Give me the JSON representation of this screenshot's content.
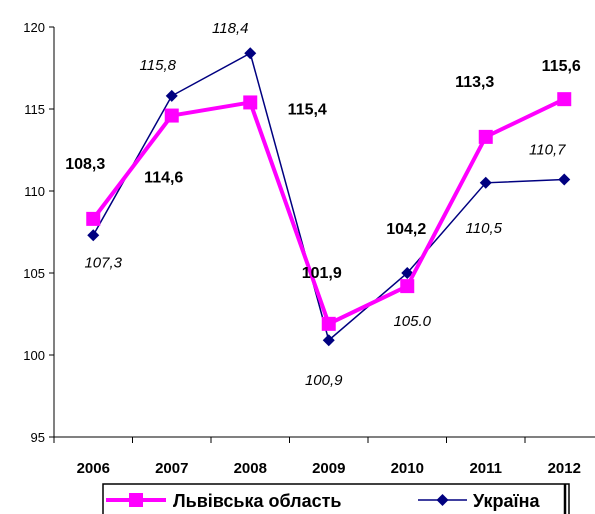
{
  "chart_data": {
    "type": "line",
    "categories": [
      "2006",
      "2007",
      "2008",
      "2009",
      "2010",
      "2011",
      "2012"
    ],
    "ylim": [
      95,
      120
    ],
    "yticks": [
      95,
      100,
      105,
      110,
      115,
      120
    ],
    "grid": false,
    "legend_position": "bottom",
    "series": [
      {
        "name": "Львівська область",
        "color": "#ff00ff",
        "marker": "square",
        "values": [
          108.3,
          114.6,
          115.4,
          101.9,
          104.2,
          113.3,
          115.6
        ],
        "labels": [
          "108,3",
          "114,6",
          "115,4",
          "101,9",
          "104,2",
          "113,3",
          "115,6"
        ]
      },
      {
        "name": "Україна",
        "color": "#000080",
        "marker": "diamond",
        "values": [
          107.3,
          115.8,
          118.4,
          100.9,
          105.0,
          110.5,
          110.7
        ],
        "labels": [
          "107,3",
          "115,8",
          "118,4",
          "100,9",
          "105.0",
          "110,5",
          "110,7"
        ]
      }
    ]
  }
}
